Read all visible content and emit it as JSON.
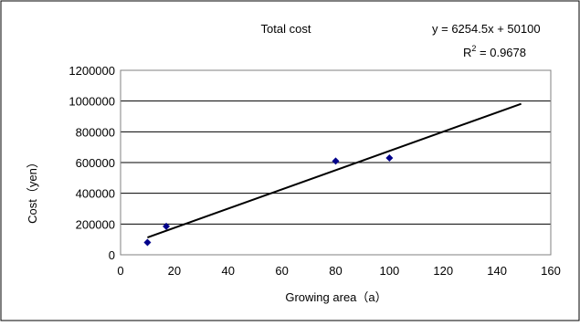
{
  "chart_data": {
    "type": "scatter",
    "title": "Total cost",
    "xlabel": "Growing area（a）",
    "ylabel": "Cost（yen）",
    "xlim": [
      0,
      160
    ],
    "ylim": [
      0,
      1200000
    ],
    "x_ticks": [
      0,
      20,
      40,
      60,
      80,
      100,
      120,
      140,
      160
    ],
    "y_ticks": [
      0,
      200000,
      400000,
      600000,
      800000,
      1000000,
      1200000
    ],
    "x_tick_labels": [
      "0",
      "20",
      "40",
      "60",
      "80",
      "100",
      "120",
      "140",
      "160"
    ],
    "y_tick_labels": [
      "0",
      "200000",
      "400000",
      "600000",
      "800000",
      "1000000",
      "1200000"
    ],
    "grid": "horizontal",
    "points": [
      {
        "x": 10,
        "y": 80000
      },
      {
        "x": 17,
        "y": 185000
      },
      {
        "x": 80,
        "y": 610000
      },
      {
        "x": 100,
        "y": 630000
      }
    ],
    "marker_color": "#00008B",
    "trendline": {
      "x_start": 10,
      "x_end": 149,
      "slope": 6254.5,
      "intercept": 50100,
      "color": "#000000"
    },
    "equation_label": "y = 6254.5x + 50100",
    "r2_label_prefix": "R",
    "r2_label_sup": "2",
    "r2_label_value": " = 0.9678"
  }
}
